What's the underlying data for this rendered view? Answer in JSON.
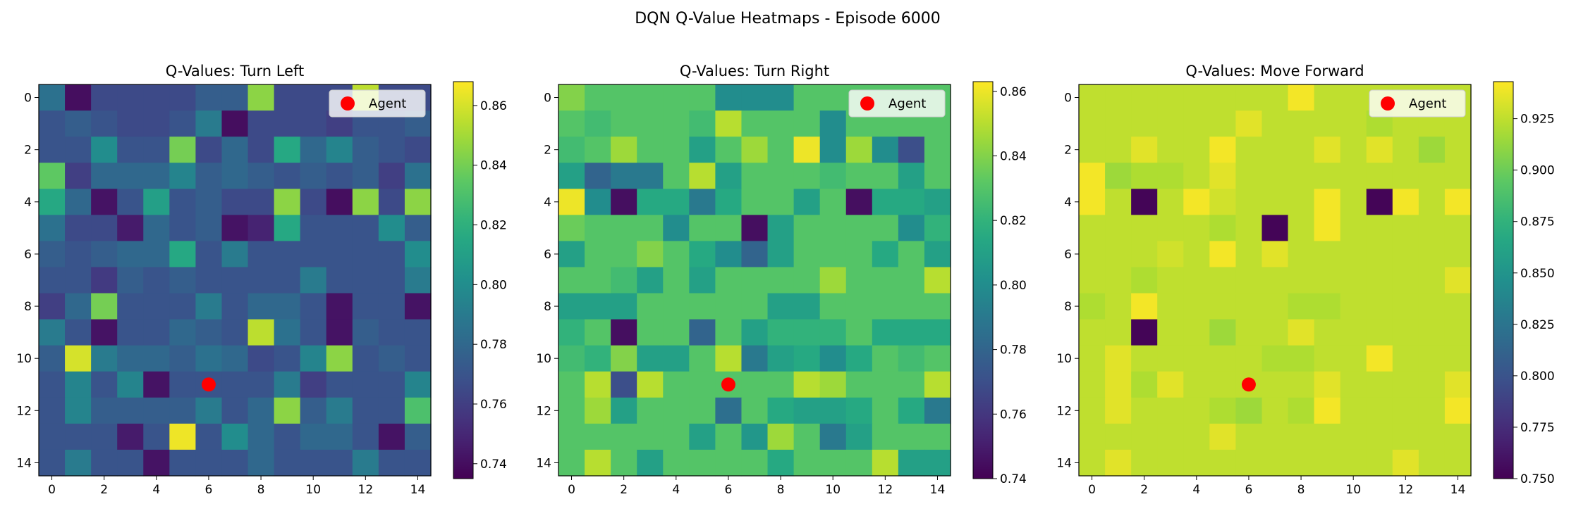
{
  "figure": {
    "suptitle": "DQN Q-Value Heatmaps - Episode 6000"
  },
  "chart_data": [
    {
      "type": "heatmap",
      "title": "Q-Values: Turn Left",
      "colormap": "viridis",
      "vmin": 0.735,
      "vmax": 0.868,
      "x_ticks": [
        "0",
        "2",
        "4",
        "6",
        "8",
        "10",
        "12",
        "14"
      ],
      "y_ticks": [
        "0",
        "2",
        "4",
        "6",
        "8",
        "10",
        "12",
        "14"
      ],
      "colorbar_ticks": [
        "0.74",
        "0.76",
        "0.78",
        "0.80",
        "0.82",
        "0.84",
        "0.86"
      ],
      "legend": {
        "label": "Agent",
        "position": "top-right",
        "marker_color": "#ff0000"
      },
      "agent": {
        "x": 6,
        "y": 11
      },
      "values": [
        [
          0.785,
          0.74,
          0.765,
          0.765,
          0.765,
          0.765,
          0.775,
          0.775,
          0.845,
          0.765,
          0.765,
          0.765,
          0.855,
          0.765,
          0.765
        ],
        [
          0.77,
          0.775,
          0.77,
          0.765,
          0.765,
          0.77,
          0.79,
          0.74,
          0.765,
          0.765,
          0.765,
          0.76,
          0.77,
          0.77,
          0.775
        ],
        [
          0.77,
          0.77,
          0.8,
          0.77,
          0.77,
          0.84,
          0.765,
          0.78,
          0.765,
          0.815,
          0.78,
          0.795,
          0.775,
          0.77,
          0.765
        ],
        [
          0.835,
          0.76,
          0.78,
          0.78,
          0.78,
          0.795,
          0.775,
          0.78,
          0.775,
          0.77,
          0.775,
          0.77,
          0.775,
          0.76,
          0.785
        ],
        [
          0.815,
          0.78,
          0.742,
          0.77,
          0.81,
          0.77,
          0.775,
          0.765,
          0.765,
          0.845,
          0.765,
          0.74,
          0.845,
          0.765,
          0.845
        ],
        [
          0.785,
          0.765,
          0.765,
          0.745,
          0.78,
          0.77,
          0.775,
          0.742,
          0.748,
          0.815,
          0.77,
          0.77,
          0.77,
          0.8,
          0.775
        ],
        [
          0.775,
          0.77,
          0.775,
          0.78,
          0.78,
          0.815,
          0.77,
          0.79,
          0.77,
          0.77,
          0.77,
          0.77,
          0.77,
          0.77,
          0.8
        ],
        [
          0.77,
          0.77,
          0.758,
          0.775,
          0.77,
          0.775,
          0.77,
          0.77,
          0.77,
          0.77,
          0.79,
          0.77,
          0.77,
          0.77,
          0.79
        ],
        [
          0.76,
          0.78,
          0.84,
          0.77,
          0.77,
          0.77,
          0.79,
          0.77,
          0.78,
          0.78,
          0.77,
          0.742,
          0.77,
          0.77,
          0.742
        ],
        [
          0.79,
          0.77,
          0.742,
          0.77,
          0.77,
          0.78,
          0.775,
          0.77,
          0.855,
          0.785,
          0.77,
          0.742,
          0.775,
          0.77,
          0.77
        ],
        [
          0.775,
          0.86,
          0.79,
          0.78,
          0.78,
          0.775,
          0.785,
          0.78,
          0.765,
          0.77,
          0.795,
          0.845,
          0.77,
          0.775,
          0.77
        ],
        [
          0.77,
          0.795,
          0.77,
          0.795,
          0.742,
          0.77,
          0.77,
          0.77,
          0.77,
          0.79,
          0.76,
          0.77,
          0.77,
          0.77,
          0.795
        ],
        [
          0.77,
          0.795,
          0.775,
          0.775,
          0.775,
          0.775,
          0.79,
          0.77,
          0.78,
          0.845,
          0.775,
          0.79,
          0.77,
          0.77,
          0.83
        ],
        [
          0.77,
          0.77,
          0.77,
          0.745,
          0.77,
          0.865,
          0.77,
          0.8,
          0.78,
          0.77,
          0.78,
          0.78,
          0.77,
          0.742,
          0.775
        ],
        [
          0.77,
          0.79,
          0.77,
          0.77,
          0.742,
          0.77,
          0.77,
          0.77,
          0.78,
          0.77,
          0.77,
          0.77,
          0.79,
          0.77,
          0.77
        ]
      ]
    },
    {
      "type": "heatmap",
      "title": "Q-Values: Turn Right",
      "colormap": "viridis",
      "vmin": 0.74,
      "vmax": 0.863,
      "x_ticks": [
        "0",
        "2",
        "4",
        "6",
        "8",
        "10",
        "12",
        "14"
      ],
      "y_ticks": [
        "0",
        "2",
        "4",
        "6",
        "8",
        "10",
        "12",
        "14"
      ],
      "colorbar_ticks": [
        "0.74",
        "0.76",
        "0.78",
        "0.80",
        "0.82",
        "0.84",
        "0.86"
      ],
      "legend": {
        "label": "Agent",
        "position": "top-right",
        "marker_color": "#ff0000"
      },
      "agent": {
        "x": 6,
        "y": 11
      },
      "values": [
        [
          0.84,
          0.83,
          0.83,
          0.83,
          0.83,
          0.83,
          0.8,
          0.8,
          0.8,
          0.83,
          0.83,
          0.83,
          0.83,
          0.83,
          0.83
        ],
        [
          0.83,
          0.825,
          0.83,
          0.83,
          0.83,
          0.825,
          0.85,
          0.83,
          0.83,
          0.83,
          0.8,
          0.83,
          0.83,
          0.83,
          0.83
        ],
        [
          0.825,
          0.83,
          0.845,
          0.83,
          0.83,
          0.81,
          0.83,
          0.845,
          0.83,
          0.86,
          0.8,
          0.845,
          0.8,
          0.77,
          0.83
        ],
        [
          0.81,
          0.78,
          0.79,
          0.79,
          0.83,
          0.85,
          0.81,
          0.83,
          0.83,
          0.83,
          0.825,
          0.83,
          0.83,
          0.81,
          0.83
        ],
        [
          0.86,
          0.8,
          0.745,
          0.815,
          0.815,
          0.79,
          0.815,
          0.83,
          0.83,
          0.81,
          0.83,
          0.745,
          0.815,
          0.815,
          0.81
        ],
        [
          0.835,
          0.83,
          0.83,
          0.83,
          0.8,
          0.83,
          0.83,
          0.745,
          0.81,
          0.83,
          0.83,
          0.83,
          0.83,
          0.8,
          0.82
        ],
        [
          0.81,
          0.83,
          0.83,
          0.84,
          0.83,
          0.815,
          0.8,
          0.78,
          0.81,
          0.83,
          0.83,
          0.83,
          0.815,
          0.83,
          0.81
        ],
        [
          0.83,
          0.83,
          0.825,
          0.81,
          0.83,
          0.81,
          0.83,
          0.83,
          0.83,
          0.83,
          0.845,
          0.83,
          0.83,
          0.83,
          0.85
        ],
        [
          0.81,
          0.81,
          0.81,
          0.83,
          0.83,
          0.83,
          0.83,
          0.83,
          0.81,
          0.81,
          0.83,
          0.83,
          0.83,
          0.83,
          0.83
        ],
        [
          0.82,
          0.83,
          0.745,
          0.83,
          0.83,
          0.78,
          0.83,
          0.81,
          0.82,
          0.82,
          0.82,
          0.83,
          0.815,
          0.815,
          0.815
        ],
        [
          0.825,
          0.82,
          0.84,
          0.81,
          0.81,
          0.83,
          0.85,
          0.79,
          0.81,
          0.815,
          0.8,
          0.815,
          0.83,
          0.825,
          0.83
        ],
        [
          0.83,
          0.85,
          0.77,
          0.85,
          0.83,
          0.83,
          0.83,
          0.83,
          0.83,
          0.85,
          0.845,
          0.83,
          0.83,
          0.83,
          0.85
        ],
        [
          0.83,
          0.845,
          0.81,
          0.83,
          0.83,
          0.83,
          0.785,
          0.83,
          0.815,
          0.81,
          0.81,
          0.815,
          0.83,
          0.815,
          0.79
        ],
        [
          0.83,
          0.83,
          0.83,
          0.83,
          0.83,
          0.81,
          0.83,
          0.805,
          0.845,
          0.83,
          0.79,
          0.81,
          0.83,
          0.83,
          0.83
        ],
        [
          0.83,
          0.85,
          0.83,
          0.81,
          0.83,
          0.83,
          0.83,
          0.83,
          0.815,
          0.83,
          0.83,
          0.83,
          0.85,
          0.81,
          0.81
        ]
      ]
    },
    {
      "type": "heatmap",
      "title": "Q-Values: Move Forward",
      "colormap": "viridis",
      "vmin": 0.75,
      "vmax": 0.943,
      "x_ticks": [
        "0",
        "2",
        "4",
        "6",
        "8",
        "10",
        "12",
        "14"
      ],
      "y_ticks": [
        "0",
        "2",
        "4",
        "6",
        "8",
        "10",
        "12",
        "14"
      ],
      "colorbar_ticks": [
        "0.750",
        "0.775",
        "0.800",
        "0.825",
        "0.850",
        "0.875",
        "0.900",
        "0.925"
      ],
      "legend": {
        "label": "Agent",
        "position": "top-right",
        "marker_color": "#ff0000"
      },
      "agent": {
        "x": 6,
        "y": 11
      },
      "values": [
        [
          0.925,
          0.925,
          0.925,
          0.925,
          0.925,
          0.925,
          0.925,
          0.925,
          0.94,
          0.925,
          0.925,
          0.925,
          0.925,
          0.925,
          0.925
        ],
        [
          0.925,
          0.925,
          0.925,
          0.925,
          0.925,
          0.925,
          0.935,
          0.925,
          0.925,
          0.925,
          0.925,
          0.92,
          0.925,
          0.925,
          0.925
        ],
        [
          0.925,
          0.925,
          0.935,
          0.925,
          0.925,
          0.94,
          0.925,
          0.925,
          0.925,
          0.935,
          0.925,
          0.935,
          0.925,
          0.915,
          0.925
        ],
        [
          0.94,
          0.915,
          0.92,
          0.92,
          0.925,
          0.935,
          0.925,
          0.925,
          0.925,
          0.925,
          0.925,
          0.925,
          0.925,
          0.925,
          0.925
        ],
        [
          0.94,
          0.925,
          0.752,
          0.925,
          0.94,
          0.93,
          0.925,
          0.925,
          0.925,
          0.94,
          0.925,
          0.752,
          0.94,
          0.925,
          0.94
        ],
        [
          0.925,
          0.925,
          0.925,
          0.925,
          0.925,
          0.92,
          0.925,
          0.752,
          0.925,
          0.94,
          0.925,
          0.925,
          0.925,
          0.925,
          0.925
        ],
        [
          0.925,
          0.925,
          0.925,
          0.93,
          0.925,
          0.94,
          0.925,
          0.935,
          0.925,
          0.925,
          0.925,
          0.925,
          0.925,
          0.925,
          0.925
        ],
        [
          0.925,
          0.925,
          0.92,
          0.925,
          0.925,
          0.925,
          0.925,
          0.925,
          0.925,
          0.925,
          0.925,
          0.925,
          0.925,
          0.925,
          0.935
        ],
        [
          0.92,
          0.925,
          0.94,
          0.925,
          0.925,
          0.925,
          0.925,
          0.925,
          0.92,
          0.92,
          0.925,
          0.925,
          0.925,
          0.925,
          0.925
        ],
        [
          0.925,
          0.925,
          0.752,
          0.925,
          0.925,
          0.915,
          0.925,
          0.925,
          0.935,
          0.925,
          0.925,
          0.925,
          0.925,
          0.925,
          0.925
        ],
        [
          0.925,
          0.935,
          0.925,
          0.925,
          0.925,
          0.925,
          0.925,
          0.92,
          0.92,
          0.925,
          0.925,
          0.94,
          0.925,
          0.925,
          0.925
        ],
        [
          0.925,
          0.935,
          0.92,
          0.935,
          0.925,
          0.925,
          0.925,
          0.925,
          0.925,
          0.935,
          0.925,
          0.925,
          0.925,
          0.925,
          0.935
        ],
        [
          0.925,
          0.935,
          0.925,
          0.925,
          0.925,
          0.92,
          0.915,
          0.925,
          0.92,
          0.94,
          0.925,
          0.925,
          0.925,
          0.925,
          0.94
        ],
        [
          0.925,
          0.925,
          0.925,
          0.925,
          0.925,
          0.935,
          0.925,
          0.925,
          0.925,
          0.925,
          0.925,
          0.925,
          0.925,
          0.925,
          0.925
        ],
        [
          0.925,
          0.935,
          0.925,
          0.925,
          0.925,
          0.925,
          0.925,
          0.925,
          0.925,
          0.925,
          0.925,
          0.925,
          0.935,
          0.925,
          0.925
        ]
      ]
    }
  ]
}
